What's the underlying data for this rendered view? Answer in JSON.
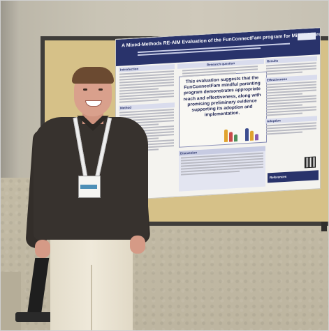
{
  "poster": {
    "title": "A Mixed-Methods RE-AIM Evaluation of the FunConnectFam program for Mindful Parenting",
    "sections": {
      "introduction": "Introduction",
      "research_question": "Research question",
      "results": "Results",
      "method": "Method",
      "effectiveness": "Effectiveness",
      "discussion": "Discussion",
      "adoption": "Adoption",
      "references": "References"
    },
    "callout_text": "This evaluation suggests that the FunConnectFam mindful parenting program demonstrates appropriate reach and effectiveness, along with promising preliminary evidence supporting its adoption and implementation."
  },
  "colors": {
    "poster_header": "#29336b",
    "cork_board": "#d6c188",
    "shirt": "#37322e",
    "pants": "#e9e2d1"
  }
}
